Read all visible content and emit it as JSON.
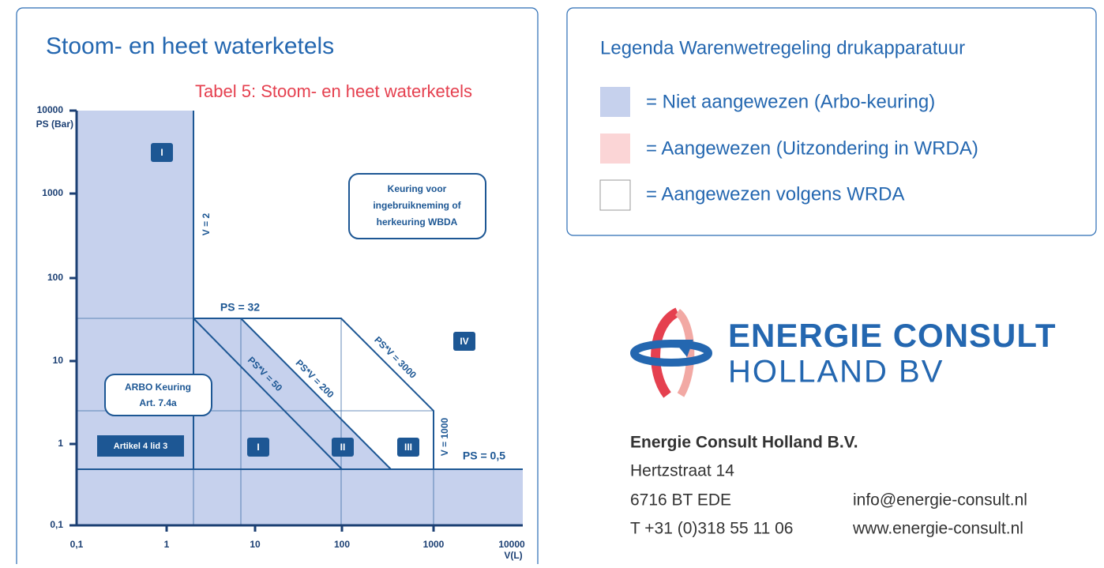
{
  "chart_panel": {
    "title": "Stoom- en heet waterketels",
    "subtitle": "Tabel 5: Stoom- en heet waterketels",
    "y_axis_title": "PS (Bar)",
    "x_axis_title": "V(L)",
    "y_labels": [
      "10000",
      "1000",
      "100",
      "10",
      "1",
      "0,1"
    ],
    "x_labels": [
      "0,1",
      "1",
      "10",
      "100",
      "1000",
      "10000"
    ],
    "boundaries": [
      "V = 2",
      "PS = 32",
      "PS*V = 50",
      "PS*V = 200",
      "PS*V = 3000",
      "V = 1000",
      "PS = 0,5"
    ],
    "categories": [
      "I",
      "I",
      "II",
      "III",
      "IV"
    ],
    "notes": [
      "Keuring voor",
      "ingebruikneming of",
      "herkeuring WBDA"
    ],
    "arbo": [
      "ARBO Keuring",
      "Art. 7.4a"
    ],
    "artikel": "Artikel 4 lid 3"
  },
  "legend": {
    "title": "Legenda Warenwetregeling drukapparatuur",
    "items": [
      "= Niet aangewezen (Arbo-keuring)",
      "= Aangewezen (Uitzondering in WRDA)",
      "= Aangewezen volgens WRDA"
    ]
  },
  "company": {
    "logo_top": "ENERGIE CONSULT",
    "logo_bottom": "HOLLAND BV",
    "name": "Energie Consult Holland B.V.",
    "street": "Hertzstraat 14",
    "city": "6716 BT EDE",
    "email": "info@energie-consult.nl",
    "phone": "T +31 (0)318 55 11 06",
    "web": "www.energie-consult.nl"
  }
}
